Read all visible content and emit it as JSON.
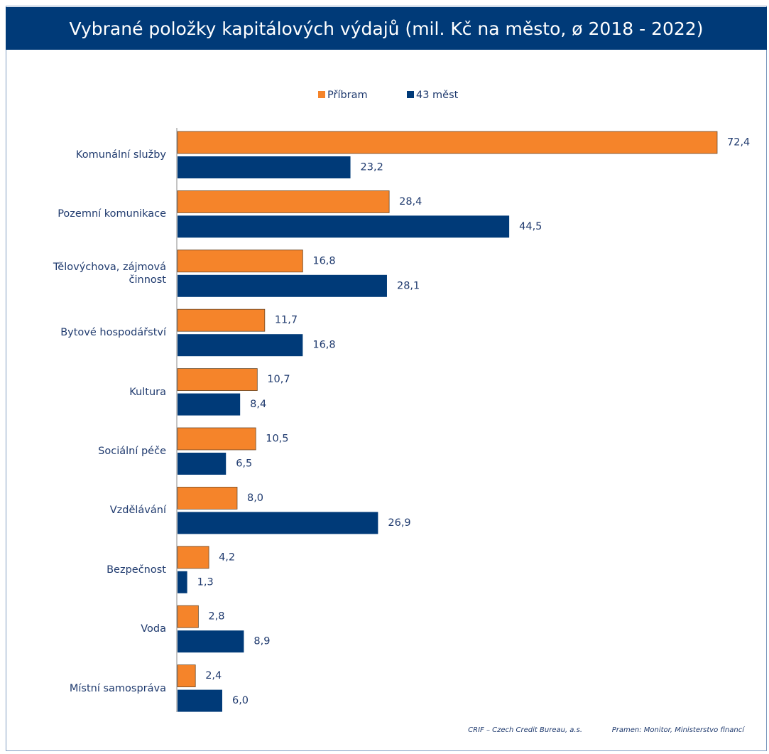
{
  "chart_data": {
    "type": "bar",
    "orientation": "horizontal",
    "title": "Vybrané položky kapitálových výdajů (mil. Kč na město, ø 2018 - 2022)",
    "categories": [
      "Komunální služby",
      "Pozemní komunikace",
      "Tělovýchova, zájmová činnost",
      "Bytové hospodářství",
      "Kultura",
      "Sociální péče",
      "Vzdělávání",
      "Bezpečnost",
      "Voda",
      "Místní samospráva"
    ],
    "series": [
      {
        "name": "Příbram",
        "color": "#f5842a",
        "values": [
          72.4,
          28.4,
          16.8,
          11.7,
          10.7,
          10.5,
          8.0,
          4.2,
          2.8,
          2.4
        ],
        "value_labels": [
          "72,4",
          "28,4",
          "16,8",
          "11,7",
          "10,7",
          "10,5",
          "8,0",
          "4,2",
          "2,8",
          "2,4"
        ]
      },
      {
        "name": "43 měst",
        "color": "#003a78",
        "values": [
          23.2,
          44.5,
          28.1,
          16.8,
          8.4,
          6.5,
          26.9,
          1.3,
          8.9,
          6.0
        ],
        "value_labels": [
          "23,2",
          "44,5",
          "28,1",
          "16,8",
          "8,4",
          "6,5",
          "26,9",
          "1,3",
          "8,9",
          "6,0"
        ]
      }
    ],
    "legend": "top",
    "credit": "CRIF – Czech Credit Bureau, a.s.",
    "source": "Pramen: Monitor, Ministerstvo financí"
  }
}
